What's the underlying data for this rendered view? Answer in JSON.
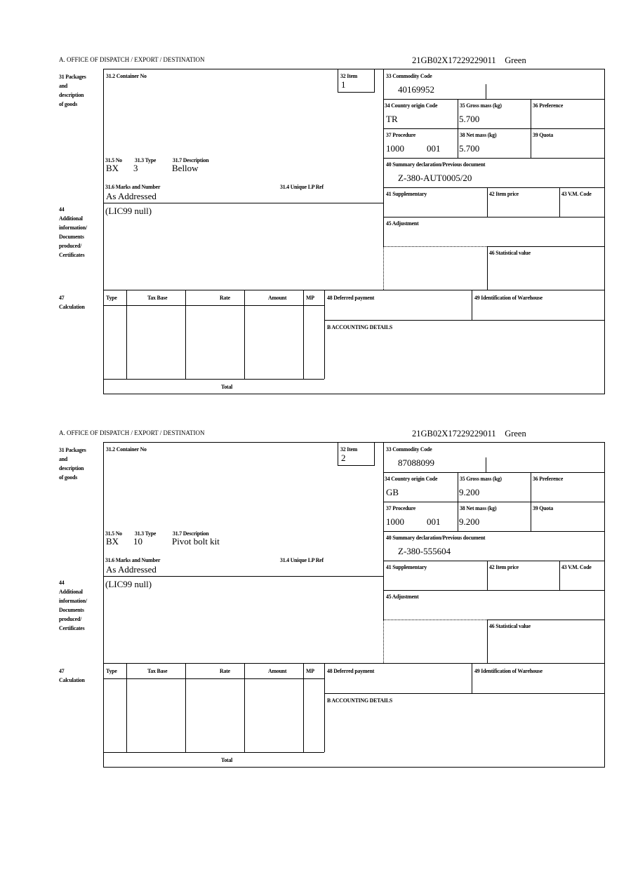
{
  "form": {
    "header_left": "A.  OFFICE OF DISPATCH / EXPORT / DESTINATION",
    "labels": {
      "l31": [
        "31 Packages",
        "and",
        "description",
        "of goods"
      ],
      "l31_2": "31.2 Container No",
      "l32": "32 Item",
      "l31_5": "31.5 No",
      "l31_3": "31.3 Type",
      "l31_7": "31.7 Description",
      "l31_6": "31.6 Marks and Number",
      "l31_4": "31.4 Unique LP Ref",
      "l33": "33 Commodity Code",
      "l34": "34 Country origin Code",
      "l35": "35 Gross mass (kg)",
      "l36": "36 Preference",
      "l37": "37 Procedure",
      "l38": "38 Net mass (kg)",
      "l39": "39 Quota",
      "l40": "40 Summary declaration/Previous document",
      "l41": "41 Supplementary",
      "l42": "42 Item price",
      "l43": "43 V.M. Code",
      "l44": [
        "44",
        "Additional",
        "information/",
        "Documents",
        "produced/",
        "Certificates"
      ],
      "l45": "45 Adjustment",
      "l46": "46 Statistical value",
      "l47": [
        "47",
        "Calculation"
      ],
      "calc_cols": [
        "Type",
        "Tax Base",
        "Rate",
        "Amount",
        "MP"
      ],
      "total": "Total",
      "l48": "48 Deferred payment",
      "l49": "49 Identification of Warehouse",
      "lB": "B ACCOUNTING DETAILS"
    }
  },
  "items": [
    {
      "ref": "21GB02X17229229011",
      "route": "Green",
      "item_no": "1",
      "pkg_no": "BX",
      "pkg_type": "3",
      "description": "Bellow",
      "marks": "As Addressed",
      "commodity_code": "40169952",
      "country_origin": "TR",
      "gross_mass": "5.700",
      "procedure": "1000",
      "procedure_add": "001",
      "net_mass": "5.700",
      "prev_doc": "Z-380-AUT0005/20",
      "additional_info": "(LIC99 null)"
    },
    {
      "ref": "21GB02X17229229011",
      "route": "Green",
      "item_no": "2",
      "pkg_no": "BX",
      "pkg_type": "10",
      "description": "Pivot bolt kit",
      "marks": "As Addressed",
      "commodity_code": "87088099",
      "country_origin": "GB",
      "gross_mass": "9.200",
      "procedure": "1000",
      "procedure_add": "001",
      "net_mass": "9.200",
      "prev_doc": "Z-380-555604",
      "additional_info": "(LIC99 null)"
    }
  ]
}
